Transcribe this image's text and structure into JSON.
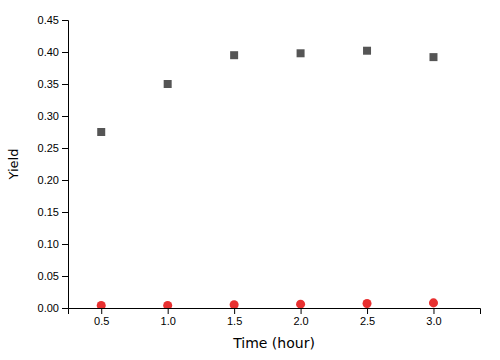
{
  "chart_data": {
    "type": "scatter",
    "x": [
      0.5,
      1.0,
      1.5,
      2.0,
      2.5,
      3.0
    ],
    "series": [
      {
        "color": "#555555",
        "marker": "square",
        "values": [
          0.275,
          0.35,
          0.395,
          0.398,
          0.402,
          0.392
        ]
      },
      {
        "color": "#e83030",
        "marker": "circle",
        "values": [
          0.004,
          0.004,
          0.005,
          0.006,
          0.007,
          0.008
        ]
      }
    ],
    "x_label": "Time (hour)",
    "y_label": "Yield",
    "xlim": [
      0.25,
      3.35
    ],
    "ylim": [
      0.0,
      0.45
    ],
    "xticks": [
      0.5,
      {
        "value": 1.0,
        "label": "1.0"
      },
      1.5,
      {
        "value": 2.0,
        "label": "2.0"
      },
      2.5,
      {
        "value": 3.0,
        "label": "3.0"
      }
    ],
    "yticks": [
      {
        "value": 0.0,
        "label": "0.00"
      },
      0.05,
      {
        "value": 0.1,
        "label": "0.10"
      },
      0.15,
      {
        "value": 0.2,
        "label": "0.20"
      },
      0.25,
      {
        "value": 0.3,
        "label": "0.30"
      },
      0.35,
      {
        "value": 0.4,
        "label": "0.40"
      },
      0.45
    ],
    "grid": false
  }
}
